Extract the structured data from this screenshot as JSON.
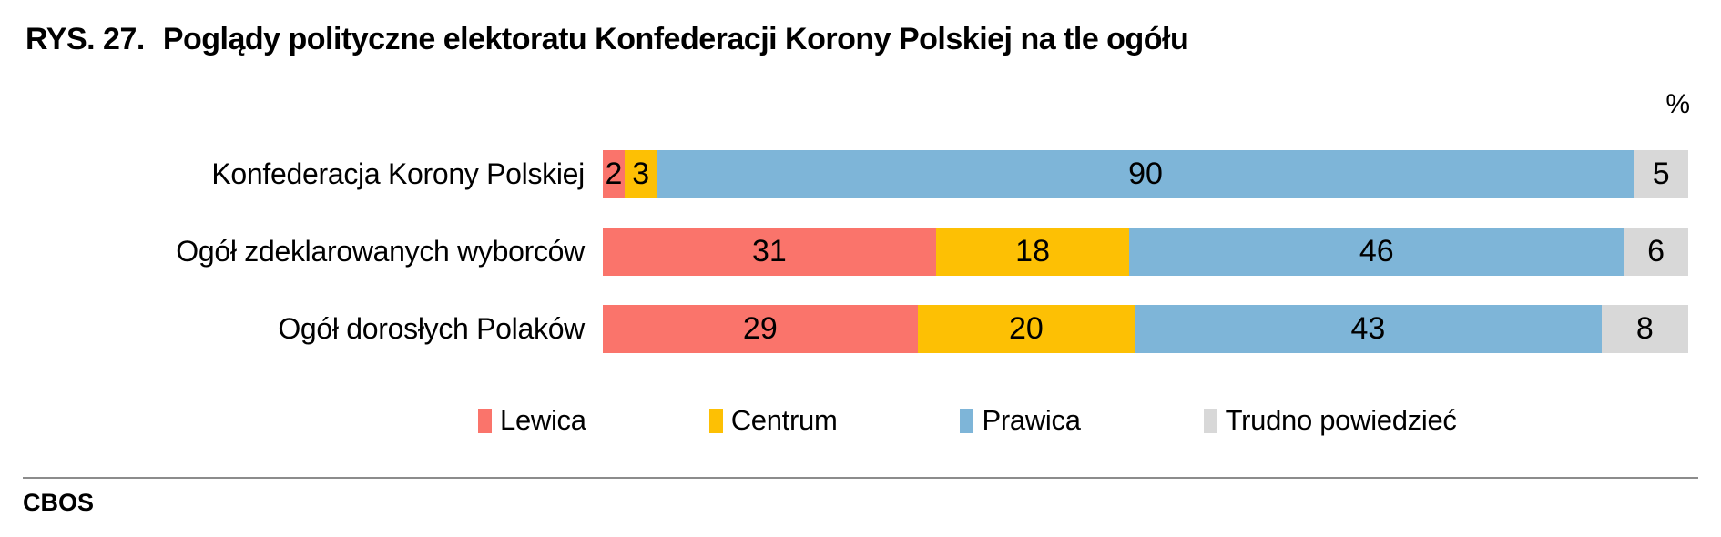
{
  "title": {
    "prefix": "RYS. 27.",
    "text": "Poglądy polityczne elektoratu Konfederacji Korony Polskiej na tle ogółu"
  },
  "unit_label": "%",
  "footer": {
    "brand": "CBOS"
  },
  "colors": {
    "lewica": "#FA746B",
    "centrum": "#FDC004",
    "prawica": "#7EB5D8",
    "trudno_powiedziec": "#D8D8D8",
    "divider": "#8C8C8C",
    "text": "#000000"
  },
  "chart_data": {
    "type": "bar",
    "orientation": "horizontal",
    "stacked": true,
    "unit": "%",
    "title": "RYS. 27. Poglądy polityczne elektoratu Konfederacji Korony Polskiej na tle ogółu",
    "categories": [
      "Konfederacja Korony Polskiej",
      "Ogół zdeklarowanych wyborców",
      "Ogół dorosłych Polaków"
    ],
    "series": [
      {
        "name": "Lewica",
        "color": "#FA746B",
        "values": [
          2,
          31,
          29
        ]
      },
      {
        "name": "Centrum",
        "color": "#FDC004",
        "values": [
          3,
          18,
          20
        ]
      },
      {
        "name": "Prawica",
        "color": "#7EB5D8",
        "values": [
          90,
          46,
          43
        ]
      },
      {
        "name": "Trudno powiedzieć",
        "color": "#D8D8D8",
        "values": [
          5,
          6,
          8
        ]
      }
    ],
    "legend_position": "bottom",
    "value_labels": "inside-center",
    "xlim": [
      0,
      100
    ],
    "grid": false
  }
}
